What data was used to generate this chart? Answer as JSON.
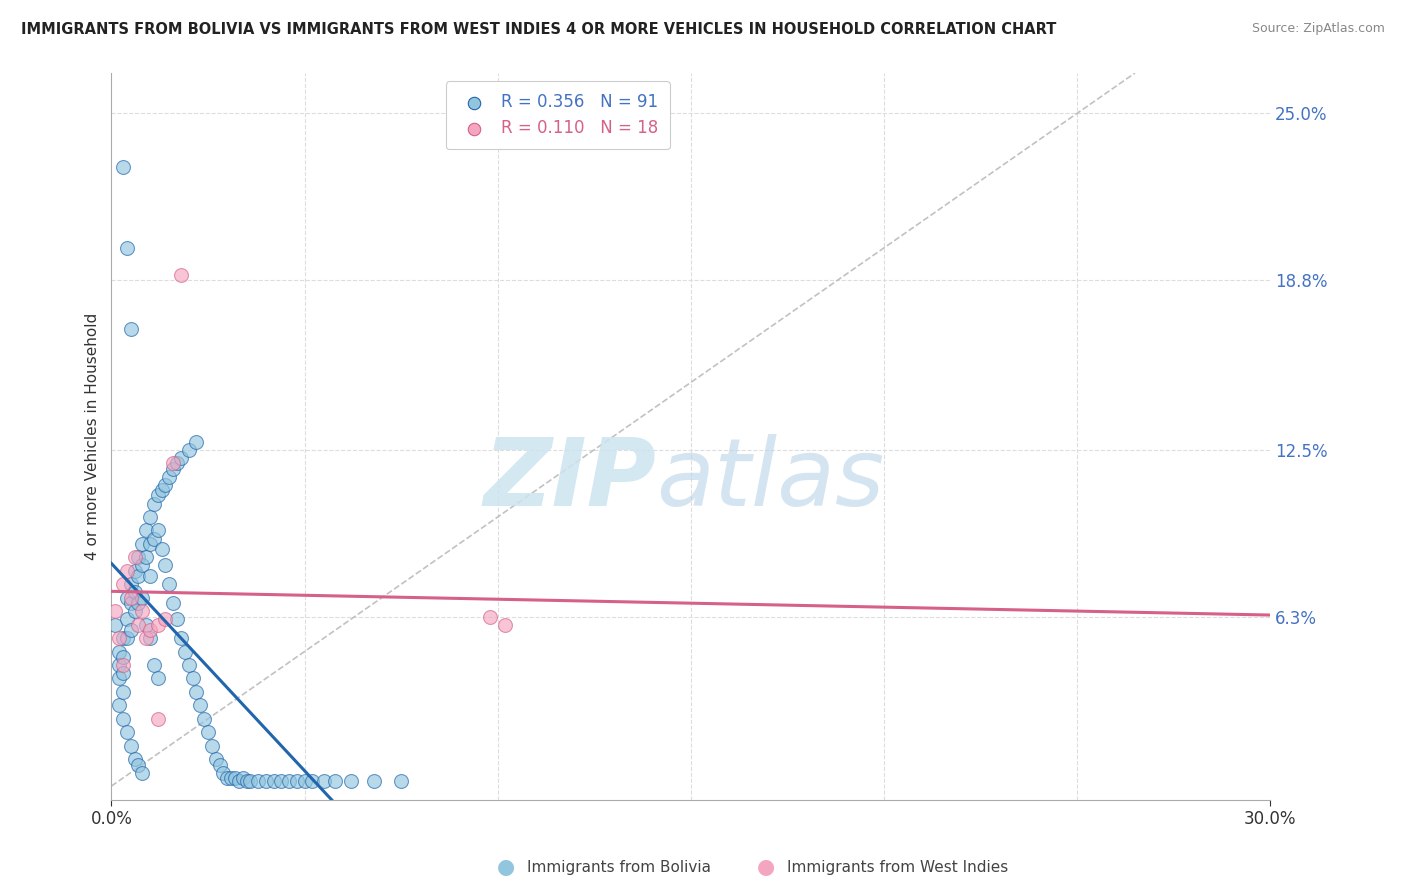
{
  "title": "IMMIGRANTS FROM BOLIVIA VS IMMIGRANTS FROM WEST INDIES 4 OR MORE VEHICLES IN HOUSEHOLD CORRELATION CHART",
  "source": "Source: ZipAtlas.com",
  "ylabel": "4 or more Vehicles in Household",
  "xlim": [
    0.0,
    0.3
  ],
  "ylim": [
    -0.005,
    0.265
  ],
  "yticks_right": [
    0.063,
    0.125,
    0.188,
    0.25
  ],
  "ytick_labels_right": [
    "6.3%",
    "12.5%",
    "18.8%",
    "25.0%"
  ],
  "R_bolivia": 0.356,
  "N_bolivia": 91,
  "R_west_indies": 0.11,
  "N_west_indies": 18,
  "color_bolivia": "#92c5de",
  "color_west_indies": "#f4a6c0",
  "line_color_bolivia": "#2166ac",
  "line_color_west_indies": "#d6608a",
  "diagonal_color": "#bbbbbb",
  "grid_color": "#dddddd",
  "bolivia_x": [
    0.001,
    0.002,
    0.002,
    0.002,
    0.002,
    0.003,
    0.003,
    0.003,
    0.003,
    0.003,
    0.004,
    0.004,
    0.004,
    0.004,
    0.005,
    0.005,
    0.005,
    0.005,
    0.006,
    0.006,
    0.006,
    0.006,
    0.007,
    0.007,
    0.007,
    0.007,
    0.008,
    0.008,
    0.008,
    0.008,
    0.009,
    0.009,
    0.009,
    0.01,
    0.01,
    0.01,
    0.01,
    0.011,
    0.011,
    0.011,
    0.012,
    0.012,
    0.012,
    0.013,
    0.013,
    0.014,
    0.014,
    0.015,
    0.015,
    0.016,
    0.016,
    0.017,
    0.017,
    0.018,
    0.018,
    0.019,
    0.02,
    0.02,
    0.021,
    0.022,
    0.022,
    0.023,
    0.024,
    0.025,
    0.026,
    0.027,
    0.028,
    0.029,
    0.03,
    0.031,
    0.032,
    0.033,
    0.034,
    0.035,
    0.036,
    0.038,
    0.04,
    0.042,
    0.044,
    0.046,
    0.048,
    0.05,
    0.052,
    0.055,
    0.058,
    0.062,
    0.068,
    0.075,
    0.003,
    0.004,
    0.005
  ],
  "bolivia_y": [
    0.06,
    0.05,
    0.045,
    0.04,
    0.03,
    0.055,
    0.048,
    0.042,
    0.035,
    0.025,
    0.07,
    0.062,
    0.055,
    0.02,
    0.075,
    0.068,
    0.058,
    0.015,
    0.08,
    0.072,
    0.065,
    0.01,
    0.085,
    0.078,
    0.068,
    0.008,
    0.09,
    0.082,
    0.07,
    0.005,
    0.095,
    0.085,
    0.06,
    0.1,
    0.09,
    0.078,
    0.055,
    0.105,
    0.092,
    0.045,
    0.108,
    0.095,
    0.04,
    0.11,
    0.088,
    0.112,
    0.082,
    0.115,
    0.075,
    0.118,
    0.068,
    0.12,
    0.062,
    0.122,
    0.055,
    0.05,
    0.125,
    0.045,
    0.04,
    0.128,
    0.035,
    0.03,
    0.025,
    0.02,
    0.015,
    0.01,
    0.008,
    0.005,
    0.003,
    0.003,
    0.003,
    0.002,
    0.003,
    0.002,
    0.002,
    0.002,
    0.002,
    0.002,
    0.002,
    0.002,
    0.002,
    0.002,
    0.002,
    0.002,
    0.002,
    0.002,
    0.002,
    0.002,
    0.23,
    0.2,
    0.17
  ],
  "west_indies_x": [
    0.001,
    0.002,
    0.003,
    0.003,
    0.004,
    0.005,
    0.006,
    0.007,
    0.008,
    0.009,
    0.01,
    0.012,
    0.014,
    0.016,
    0.098,
    0.102,
    0.012,
    0.018
  ],
  "west_indies_y": [
    0.065,
    0.055,
    0.075,
    0.045,
    0.08,
    0.07,
    0.085,
    0.06,
    0.065,
    0.055,
    0.058,
    0.06,
    0.062,
    0.12,
    0.063,
    0.06,
    0.025,
    0.19
  ]
}
